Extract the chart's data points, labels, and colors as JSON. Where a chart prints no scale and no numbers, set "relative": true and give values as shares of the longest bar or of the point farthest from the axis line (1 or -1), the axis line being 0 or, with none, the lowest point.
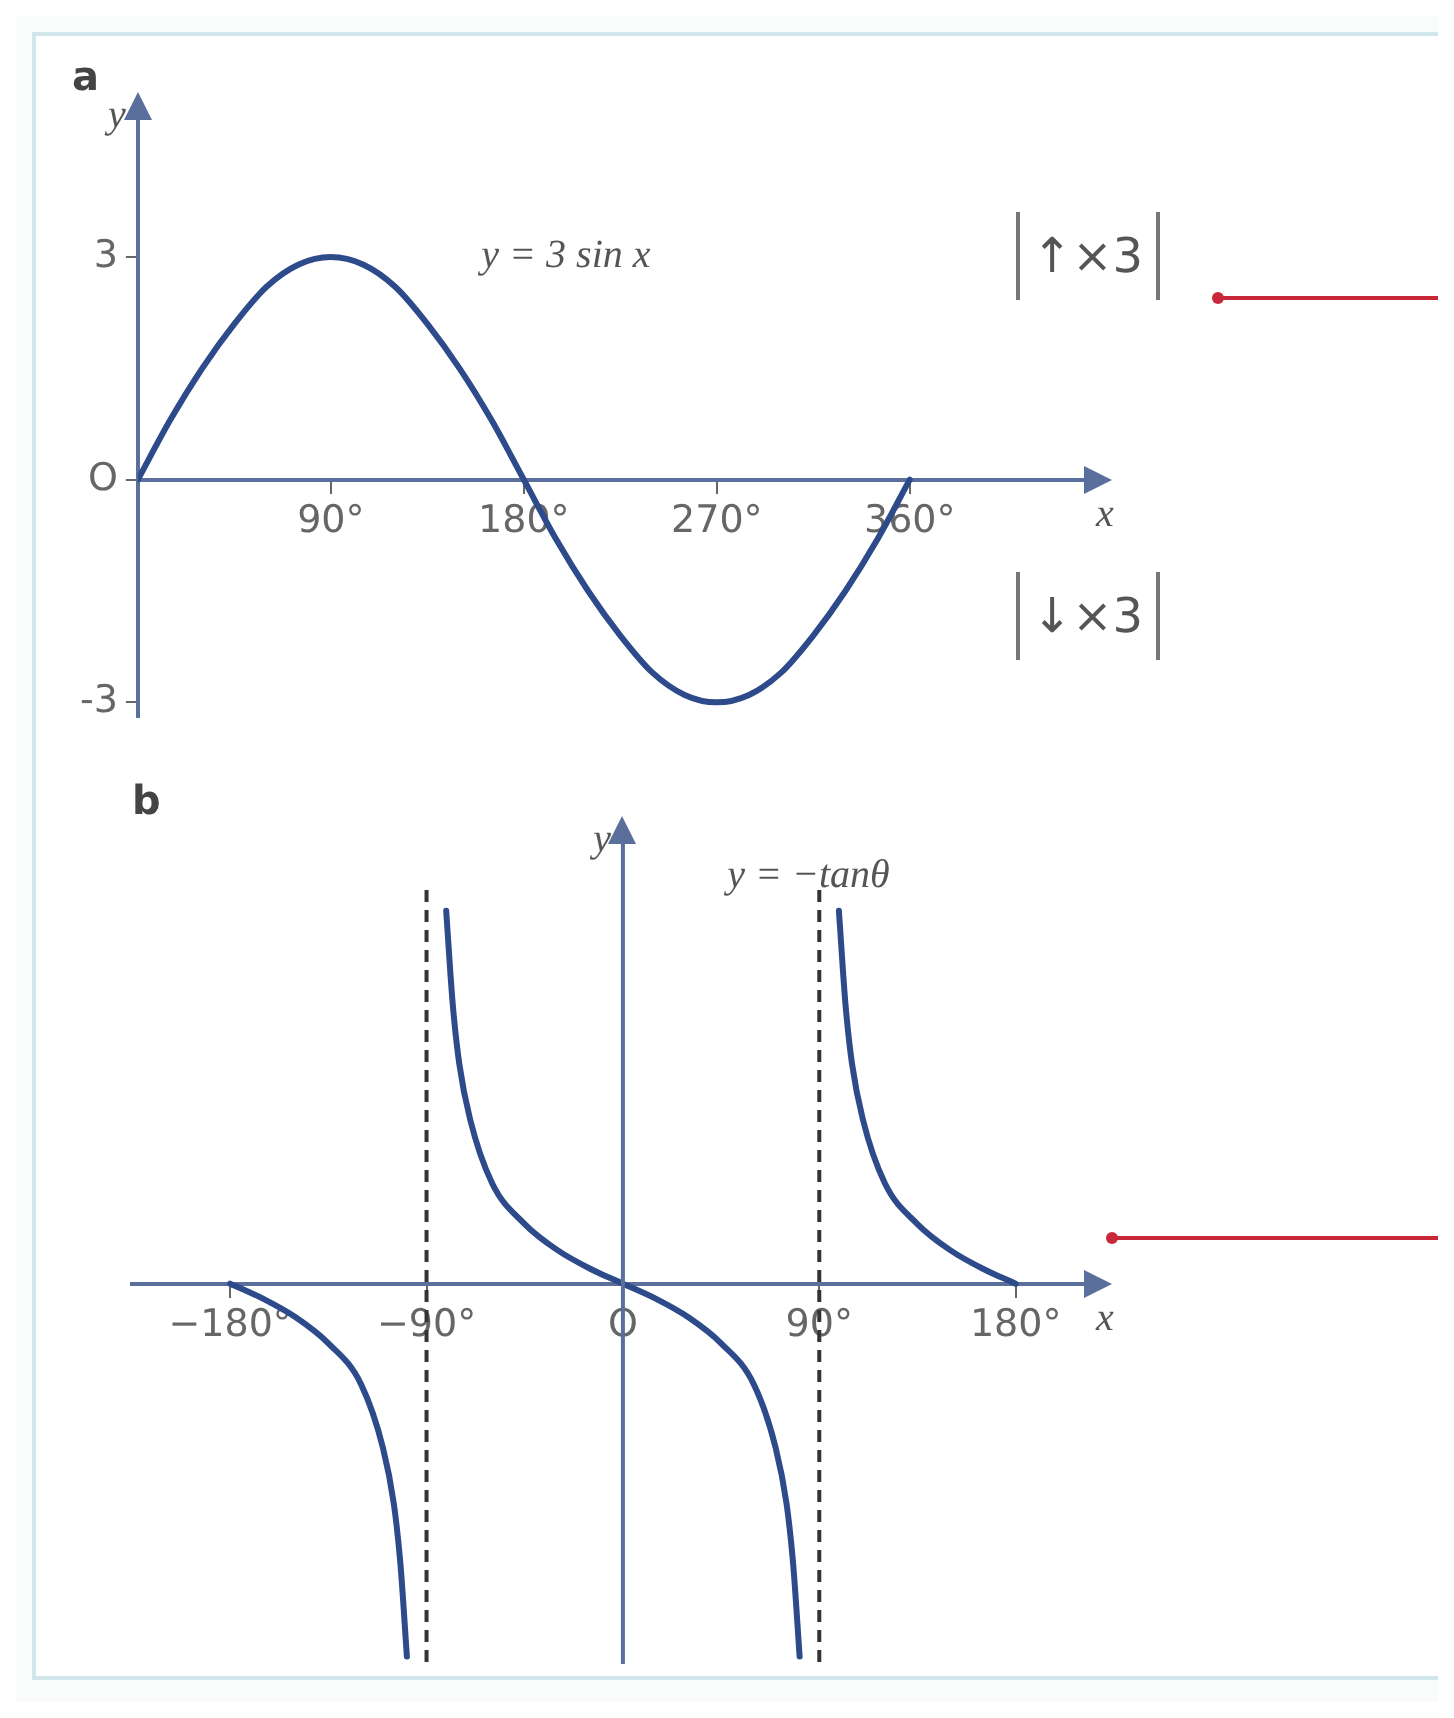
{
  "chart_data": [
    {
      "type": "line",
      "title": "a",
      "xlabel": "x",
      "ylabel": "y",
      "annotations": [
        "y = 3 sin x",
        "↑×3",
        "↓×3"
      ],
      "x": [
        0,
        15,
        30,
        45,
        60,
        75,
        90,
        105,
        120,
        135,
        150,
        165,
        180,
        195,
        210,
        225,
        240,
        255,
        270,
        285,
        300,
        315,
        330,
        345,
        360
      ],
      "series": [
        {
          "color": "#2d4a8a",
          "values": [
            0,
            0.8,
            1.5,
            2.1,
            2.6,
            2.9,
            3,
            2.9,
            2.6,
            2.1,
            1.5,
            0.8,
            0,
            -0.8,
            -1.5,
            -2.1,
            -2.6,
            -2.9,
            -3,
            -2.9,
            -2.6,
            -2.1,
            -1.5,
            -0.8,
            0
          ]
        }
      ],
      "xlim": [
        0,
        445
      ],
      "ylim": [
        -3.2,
        4.9
      ],
      "xticks": [
        {
          "value": 90,
          "label": "90°"
        },
        {
          "value": 180,
          "label": "180°"
        },
        {
          "value": 270,
          "label": "270°"
        },
        {
          "value": 360,
          "label": "360°"
        }
      ],
      "yticks": [
        -3,
        {
          "value": 0,
          "label": "O"
        },
        3
      ],
      "grid": false,
      "legend": false,
      "marker": "none",
      "line_style": "solid"
    },
    {
      "type": "line",
      "title": "b",
      "xlabel": "x",
      "ylabel": "y",
      "annotations": [
        "y = −tanθ"
      ],
      "relative": true,
      "series": [
        {
          "color": "#2d4a8a",
          "x": [
            -180,
            -165,
            -150,
            -135,
            -120,
            -110,
            -105,
            -102,
            -99
          ],
          "values": [
            0,
            -0.04,
            -0.09,
            -0.16,
            -0.27,
            -0.44,
            -0.59,
            -0.75,
            -1
          ]
        },
        {
          "color": "#2d4a8a",
          "x": [
            -81,
            -78,
            -75,
            -70,
            -60,
            -45,
            -30,
            -15,
            0,
            15,
            30,
            45,
            60,
            70,
            75,
            78,
            81
          ],
          "values": [
            1,
            0.75,
            0.59,
            0.44,
            0.27,
            0.16,
            0.09,
            0.04,
            0,
            -0.04,
            -0.09,
            -0.16,
            -0.27,
            -0.44,
            -0.59,
            -0.75,
            -1
          ]
        },
        {
          "color": "#2d4a8a",
          "x": [
            99,
            102,
            105,
            110,
            120,
            135,
            150,
            165,
            180
          ],
          "values": [
            1,
            0.75,
            0.59,
            0.44,
            0.27,
            0.16,
            0.09,
            0.04,
            0
          ]
        }
      ],
      "xlim": [
        -225,
        215
      ],
      "xticks": [
        {
          "value": -180,
          "label": "−180°"
        },
        {
          "value": -90,
          "label": "−90°"
        },
        {
          "value": 0,
          "label": "O"
        },
        {
          "value": 90,
          "label": "90°"
        },
        {
          "value": 180,
          "label": "180°"
        }
      ],
      "ref_lines": [
        {
          "axis": "x",
          "value": 0,
          "color": "#5a6f9c",
          "line_style": "solid"
        },
        {
          "axis": "x",
          "value": -90,
          "color": "#333333",
          "line_style": "dashed"
        },
        {
          "axis": "x",
          "value": 90,
          "color": "#333333",
          "line_style": "dashed"
        }
      ],
      "grid": false,
      "legend": false,
      "marker": "none",
      "line_style": "solid"
    }
  ]
}
